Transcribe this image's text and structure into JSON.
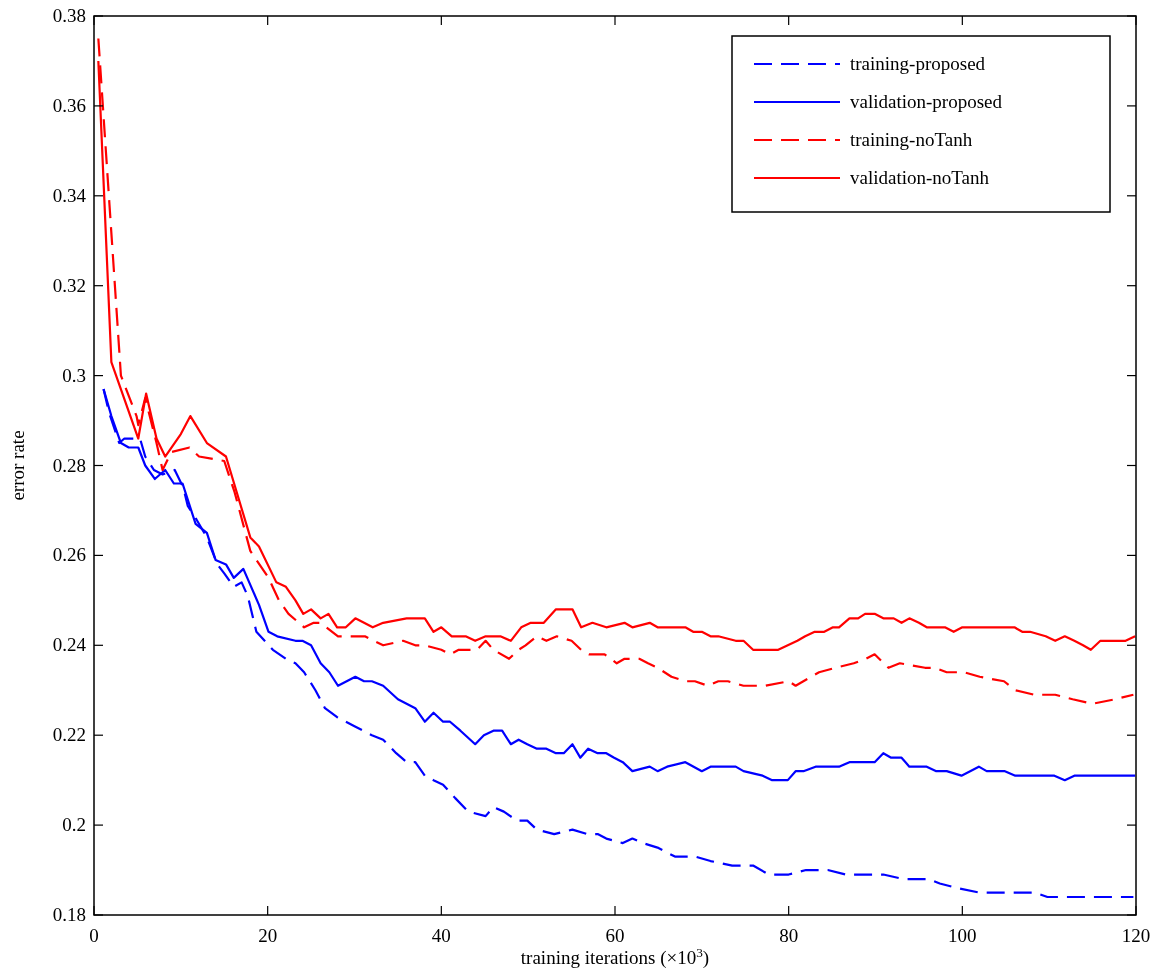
{
  "chart_data": {
    "type": "line",
    "xlabel": "training iterations (×10$^{3}$)",
    "ylabel": "error rate",
    "xlim": [
      0,
      120
    ],
    "xticks": [
      0,
      20,
      40,
      60,
      80,
      100,
      120
    ],
    "ylim": [
      0.18,
      0.38
    ],
    "yticks": [
      0.18,
      0.2,
      0.22,
      0.24,
      0.26,
      0.28,
      0.3,
      0.32,
      0.34,
      0.36,
      0.38
    ],
    "legend": "top right",
    "series": [
      {
        "name": "training-proposed",
        "color": "#0000ff",
        "line_style": "dashed",
        "x": [
          1.1,
          1.7,
          2.9,
          3.5,
          5.3,
          5.9,
          6.9,
          7.9,
          9.3,
          10.3,
          10.8,
          11.8,
          13,
          14.2,
          15,
          16.1,
          17,
          17.7,
          18.7,
          20.6,
          22.1,
          23.2,
          24.2,
          25.5,
          26.6,
          28,
          30,
          32,
          33.3,
          34.8,
          36,
          37,
          38.1,
          39.1,
          40.2,
          41.6,
          43.1,
          45.1,
          46,
          47.2,
          48.7,
          49.9,
          51,
          53,
          55.1,
          56.8,
          58,
          59,
          60.9,
          62,
          63.2,
          64.9,
          66.9,
          69.2,
          71,
          73.5,
          75.9,
          77.7,
          78.8,
          80,
          82,
          84.5,
          86.6,
          87.8,
          90.9,
          93.2,
          96.1,
          97.4,
          99.4,
          101.9,
          103.8,
          106,
          108.3,
          109.8,
          112.5,
          113.9,
          115,
          117,
          119.7
        ],
        "values": [
          0.297,
          0.292,
          0.285,
          0.286,
          0.286,
          0.282,
          0.279,
          0.278,
          0.279,
          0.275,
          0.271,
          0.268,
          0.264,
          0.258,
          0.256,
          0.253,
          0.254,
          0.251,
          0.243,
          0.239,
          0.237,
          0.236,
          0.234,
          0.23,
          0.226,
          0.224,
          0.222,
          0.22,
          0.219,
          0.216,
          0.214,
          0.214,
          0.211,
          0.21,
          0.209,
          0.206,
          0.203,
          0.202,
          0.204,
          0.203,
          0.201,
          0.201,
          0.199,
          0.198,
          0.199,
          0.198,
          0.198,
          0.197,
          0.196,
          0.197,
          0.196,
          0.195,
          0.193,
          0.193,
          0.192,
          0.191,
          0.191,
          0.189,
          0.189,
          0.189,
          0.19,
          0.19,
          0.189,
          0.189,
          0.189,
          0.188,
          0.188,
          0.187,
          0.186,
          0.185,
          0.185,
          0.185,
          0.185,
          0.184,
          0.184,
          0.184,
          0.184,
          0.184,
          0.184
        ]
      },
      {
        "name": "validation-proposed",
        "color": "#0000ff",
        "line_style": "solid",
        "x": [
          1.1,
          2,
          3.1,
          4,
          5.1,
          5.9,
          7,
          8.2,
          9.2,
          10.2,
          11.7,
          13,
          14,
          15.2,
          16.1,
          17.2,
          19,
          20.1,
          21.1,
          23.2,
          24,
          25,
          26.1,
          27.1,
          28.1,
          29.1,
          30.1,
          31.1,
          32,
          33.3,
          35,
          37,
          38.1,
          39.1,
          40.2,
          41,
          42.2,
          43.9,
          44.9,
          46,
          47,
          48,
          48.9,
          49.9,
          51,
          52.1,
          53.2,
          54.1,
          55.1,
          56,
          56.9,
          58,
          59,
          59.9,
          60.9,
          62,
          64,
          64.9,
          66,
          68.1,
          70,
          71,
          73.9,
          74.8,
          77,
          78.1,
          79.9,
          80.8,
          81.7,
          83.1,
          84.3,
          85.8,
          87,
          89.9,
          90.9,
          91.8,
          93,
          93.9,
          95.9,
          97,
          98.2,
          99.9,
          101.9,
          102.8,
          104.9,
          106.1,
          107.2,
          109,
          110.6,
          111.8,
          112.9,
          114.8,
          115.9,
          117.1,
          117.9,
          119.9
        ],
        "values": [
          0.297,
          0.291,
          0.285,
          0.284,
          0.284,
          0.28,
          0.277,
          0.279,
          0.276,
          0.276,
          0.267,
          0.265,
          0.259,
          0.258,
          0.255,
          0.257,
          0.249,
          0.243,
          0.242,
          0.241,
          0.241,
          0.24,
          0.236,
          0.234,
          0.231,
          0.232,
          0.233,
          0.232,
          0.232,
          0.231,
          0.228,
          0.226,
          0.223,
          0.225,
          0.223,
          0.223,
          0.221,
          0.218,
          0.22,
          0.221,
          0.221,
          0.218,
          0.219,
          0.218,
          0.217,
          0.217,
          0.216,
          0.216,
          0.218,
          0.215,
          0.217,
          0.216,
          0.216,
          0.215,
          0.214,
          0.212,
          0.213,
          0.212,
          0.213,
          0.214,
          0.212,
          0.213,
          0.213,
          0.212,
          0.211,
          0.21,
          0.21,
          0.212,
          0.212,
          0.213,
          0.213,
          0.213,
          0.214,
          0.214,
          0.216,
          0.215,
          0.215,
          0.213,
          0.213,
          0.212,
          0.212,
          0.211,
          0.213,
          0.212,
          0.212,
          0.211,
          0.211,
          0.211,
          0.211,
          0.21,
          0.211,
          0.211,
          0.211,
          0.211,
          0.211,
          0.211
        ]
      },
      {
        "name": "training-noTanh",
        "color": "#ff0000",
        "line_style": "dashed",
        "x": [
          0.5,
          3.1,
          4.9,
          5.1,
          5.9,
          7.2,
          7.9,
          8.9,
          11,
          12.1,
          15,
          16.2,
          18,
          20.1,
          21.3,
          22.4,
          24.2,
          25.3,
          26.1,
          28.1,
          31.2,
          32.2,
          33.3,
          35.6,
          37,
          38.1,
          40,
          41,
          42,
          44.1,
          45.1,
          46,
          47.8,
          48.9,
          49.7,
          51,
          52.1,
          53.3,
          55,
          56.1,
          57,
          58.8,
          60.2,
          61.1,
          62.8,
          63.8,
          64.9,
          66.5,
          68.1,
          69.2,
          70.7,
          71.9,
          73,
          74.8,
          77.3,
          80,
          80.8,
          83.5,
          85.4,
          87.5,
          88.9,
          89.9,
          91.5,
          92.8,
          95.7,
          96.8,
          98.2,
          100.2,
          102,
          104.8,
          106.1,
          108.3,
          110.7,
          112.7,
          115,
          117.6,
          119.7
        ],
        "values": [
          0.375,
          0.3,
          0.291,
          0.289,
          0.295,
          0.285,
          0.279,
          0.283,
          0.284,
          0.282,
          0.281,
          0.274,
          0.261,
          0.255,
          0.25,
          0.247,
          0.244,
          0.245,
          0.245,
          0.242,
          0.242,
          0.241,
          0.24,
          0.241,
          0.24,
          0.24,
          0.239,
          0.238,
          0.239,
          0.239,
          0.241,
          0.239,
          0.237,
          0.239,
          0.24,
          0.242,
          0.241,
          0.242,
          0.241,
          0.239,
          0.238,
          0.238,
          0.236,
          0.237,
          0.237,
          0.236,
          0.235,
          0.233,
          0.232,
          0.232,
          0.231,
          0.232,
          0.232,
          0.231,
          0.231,
          0.232,
          0.231,
          0.234,
          0.235,
          0.236,
          0.237,
          0.238,
          0.235,
          0.236,
          0.235,
          0.235,
          0.234,
          0.234,
          0.233,
          0.232,
          0.23,
          0.229,
          0.229,
          0.228,
          0.227,
          0.228,
          0.229
        ]
      },
      {
        "name": "validation-noTanh",
        "color": "#ff0000",
        "line_style": "solid",
        "x": [
          0.5,
          2,
          5.1,
          6,
          7.2,
          8.2,
          10,
          11.1,
          13,
          15.2,
          18,
          19,
          21,
          22.1,
          23.2,
          24.1,
          25,
          26.1,
          27,
          28,
          29,
          30.1,
          32.1,
          33.3,
          36,
          38.1,
          39.1,
          40,
          41.2,
          42.8,
          43.9,
          45.1,
          46.8,
          48,
          49.2,
          50.3,
          51.8,
          53.2,
          54.1,
          55.1,
          56.1,
          57.4,
          59,
          61.1,
          62,
          64,
          64.9,
          68.1,
          69,
          70,
          71,
          71.9,
          73.9,
          74.8,
          75.9,
          77,
          78.8,
          79.9,
          81,
          81.9,
          83,
          84.1,
          85.1,
          85.8,
          87,
          88,
          88.8,
          89.9,
          90.9,
          92.1,
          93,
          93.9,
          95,
          95.9,
          98,
          99,
          100,
          100.9,
          102.8,
          104,
          104.9,
          106,
          106.9,
          107.8,
          109.6,
          110.7,
          111.8,
          112.9,
          113.9,
          114.8,
          115.9,
          117,
          117.9,
          118.8,
          119.9
        ],
        "values": [
          0.37,
          0.303,
          0.286,
          0.296,
          0.286,
          0.282,
          0.287,
          0.291,
          0.285,
          0.282,
          0.264,
          0.262,
          0.254,
          0.253,
          0.25,
          0.247,
          0.248,
          0.246,
          0.247,
          0.244,
          0.244,
          0.246,
          0.244,
          0.245,
          0.246,
          0.246,
          0.243,
          0.244,
          0.242,
          0.242,
          0.241,
          0.242,
          0.242,
          0.241,
          0.244,
          0.245,
          0.245,
          0.248,
          0.248,
          0.248,
          0.244,
          0.245,
          0.244,
          0.245,
          0.244,
          0.245,
          0.244,
          0.244,
          0.243,
          0.243,
          0.242,
          0.242,
          0.241,
          0.241,
          0.239,
          0.239,
          0.239,
          0.24,
          0.241,
          0.242,
          0.243,
          0.243,
          0.244,
          0.244,
          0.246,
          0.246,
          0.247,
          0.247,
          0.246,
          0.246,
          0.245,
          0.246,
          0.245,
          0.244,
          0.244,
          0.243,
          0.244,
          0.244,
          0.244,
          0.244,
          0.244,
          0.244,
          0.243,
          0.243,
          0.242,
          0.241,
          0.242,
          0.241,
          0.24,
          0.239,
          0.241,
          0.241,
          0.241,
          0.241,
          0.242
        ]
      }
    ]
  }
}
